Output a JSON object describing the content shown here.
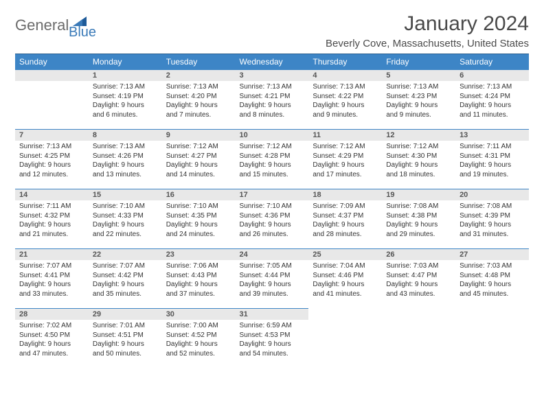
{
  "logo": {
    "general": "General",
    "blue": "Blue"
  },
  "title": "January 2024",
  "location": "Beverly Cove, Massachusetts, United States",
  "colors": {
    "header_bg": "#3d85c6",
    "header_text": "#ffffff",
    "daynum_bg": "#e8e8e8",
    "row_border": "#3d85c6",
    "logo_general": "#6b6b6b",
    "logo_blue": "#3a7ab8"
  },
  "day_headers": [
    "Sunday",
    "Monday",
    "Tuesday",
    "Wednesday",
    "Thursday",
    "Friday",
    "Saturday"
  ],
  "weeks": [
    [
      null,
      {
        "num": "1",
        "sr": "Sunrise: 7:13 AM",
        "ss": "Sunset: 4:19 PM",
        "d1": "Daylight: 9 hours",
        "d2": "and 6 minutes."
      },
      {
        "num": "2",
        "sr": "Sunrise: 7:13 AM",
        "ss": "Sunset: 4:20 PM",
        "d1": "Daylight: 9 hours",
        "d2": "and 7 minutes."
      },
      {
        "num": "3",
        "sr": "Sunrise: 7:13 AM",
        "ss": "Sunset: 4:21 PM",
        "d1": "Daylight: 9 hours",
        "d2": "and 8 minutes."
      },
      {
        "num": "4",
        "sr": "Sunrise: 7:13 AM",
        "ss": "Sunset: 4:22 PM",
        "d1": "Daylight: 9 hours",
        "d2": "and 9 minutes."
      },
      {
        "num": "5",
        "sr": "Sunrise: 7:13 AM",
        "ss": "Sunset: 4:23 PM",
        "d1": "Daylight: 9 hours",
        "d2": "and 9 minutes."
      },
      {
        "num": "6",
        "sr": "Sunrise: 7:13 AM",
        "ss": "Sunset: 4:24 PM",
        "d1": "Daylight: 9 hours",
        "d2": "and 11 minutes."
      }
    ],
    [
      {
        "num": "7",
        "sr": "Sunrise: 7:13 AM",
        "ss": "Sunset: 4:25 PM",
        "d1": "Daylight: 9 hours",
        "d2": "and 12 minutes."
      },
      {
        "num": "8",
        "sr": "Sunrise: 7:13 AM",
        "ss": "Sunset: 4:26 PM",
        "d1": "Daylight: 9 hours",
        "d2": "and 13 minutes."
      },
      {
        "num": "9",
        "sr": "Sunrise: 7:12 AM",
        "ss": "Sunset: 4:27 PM",
        "d1": "Daylight: 9 hours",
        "d2": "and 14 minutes."
      },
      {
        "num": "10",
        "sr": "Sunrise: 7:12 AM",
        "ss": "Sunset: 4:28 PM",
        "d1": "Daylight: 9 hours",
        "d2": "and 15 minutes."
      },
      {
        "num": "11",
        "sr": "Sunrise: 7:12 AM",
        "ss": "Sunset: 4:29 PM",
        "d1": "Daylight: 9 hours",
        "d2": "and 17 minutes."
      },
      {
        "num": "12",
        "sr": "Sunrise: 7:12 AM",
        "ss": "Sunset: 4:30 PM",
        "d1": "Daylight: 9 hours",
        "d2": "and 18 minutes."
      },
      {
        "num": "13",
        "sr": "Sunrise: 7:11 AM",
        "ss": "Sunset: 4:31 PM",
        "d1": "Daylight: 9 hours",
        "d2": "and 19 minutes."
      }
    ],
    [
      {
        "num": "14",
        "sr": "Sunrise: 7:11 AM",
        "ss": "Sunset: 4:32 PM",
        "d1": "Daylight: 9 hours",
        "d2": "and 21 minutes."
      },
      {
        "num": "15",
        "sr": "Sunrise: 7:10 AM",
        "ss": "Sunset: 4:33 PM",
        "d1": "Daylight: 9 hours",
        "d2": "and 22 minutes."
      },
      {
        "num": "16",
        "sr": "Sunrise: 7:10 AM",
        "ss": "Sunset: 4:35 PM",
        "d1": "Daylight: 9 hours",
        "d2": "and 24 minutes."
      },
      {
        "num": "17",
        "sr": "Sunrise: 7:10 AM",
        "ss": "Sunset: 4:36 PM",
        "d1": "Daylight: 9 hours",
        "d2": "and 26 minutes."
      },
      {
        "num": "18",
        "sr": "Sunrise: 7:09 AM",
        "ss": "Sunset: 4:37 PM",
        "d1": "Daylight: 9 hours",
        "d2": "and 28 minutes."
      },
      {
        "num": "19",
        "sr": "Sunrise: 7:08 AM",
        "ss": "Sunset: 4:38 PM",
        "d1": "Daylight: 9 hours",
        "d2": "and 29 minutes."
      },
      {
        "num": "20",
        "sr": "Sunrise: 7:08 AM",
        "ss": "Sunset: 4:39 PM",
        "d1": "Daylight: 9 hours",
        "d2": "and 31 minutes."
      }
    ],
    [
      {
        "num": "21",
        "sr": "Sunrise: 7:07 AM",
        "ss": "Sunset: 4:41 PM",
        "d1": "Daylight: 9 hours",
        "d2": "and 33 minutes."
      },
      {
        "num": "22",
        "sr": "Sunrise: 7:07 AM",
        "ss": "Sunset: 4:42 PM",
        "d1": "Daylight: 9 hours",
        "d2": "and 35 minutes."
      },
      {
        "num": "23",
        "sr": "Sunrise: 7:06 AM",
        "ss": "Sunset: 4:43 PM",
        "d1": "Daylight: 9 hours",
        "d2": "and 37 minutes."
      },
      {
        "num": "24",
        "sr": "Sunrise: 7:05 AM",
        "ss": "Sunset: 4:44 PM",
        "d1": "Daylight: 9 hours",
        "d2": "and 39 minutes."
      },
      {
        "num": "25",
        "sr": "Sunrise: 7:04 AM",
        "ss": "Sunset: 4:46 PM",
        "d1": "Daylight: 9 hours",
        "d2": "and 41 minutes."
      },
      {
        "num": "26",
        "sr": "Sunrise: 7:03 AM",
        "ss": "Sunset: 4:47 PM",
        "d1": "Daylight: 9 hours",
        "d2": "and 43 minutes."
      },
      {
        "num": "27",
        "sr": "Sunrise: 7:03 AM",
        "ss": "Sunset: 4:48 PM",
        "d1": "Daylight: 9 hours",
        "d2": "and 45 minutes."
      }
    ],
    [
      {
        "num": "28",
        "sr": "Sunrise: 7:02 AM",
        "ss": "Sunset: 4:50 PM",
        "d1": "Daylight: 9 hours",
        "d2": "and 47 minutes."
      },
      {
        "num": "29",
        "sr": "Sunrise: 7:01 AM",
        "ss": "Sunset: 4:51 PM",
        "d1": "Daylight: 9 hours",
        "d2": "and 50 minutes."
      },
      {
        "num": "30",
        "sr": "Sunrise: 7:00 AM",
        "ss": "Sunset: 4:52 PM",
        "d1": "Daylight: 9 hours",
        "d2": "and 52 minutes."
      },
      {
        "num": "31",
        "sr": "Sunrise: 6:59 AM",
        "ss": "Sunset: 4:53 PM",
        "d1": "Daylight: 9 hours",
        "d2": "and 54 minutes."
      },
      null,
      null,
      null
    ]
  ]
}
